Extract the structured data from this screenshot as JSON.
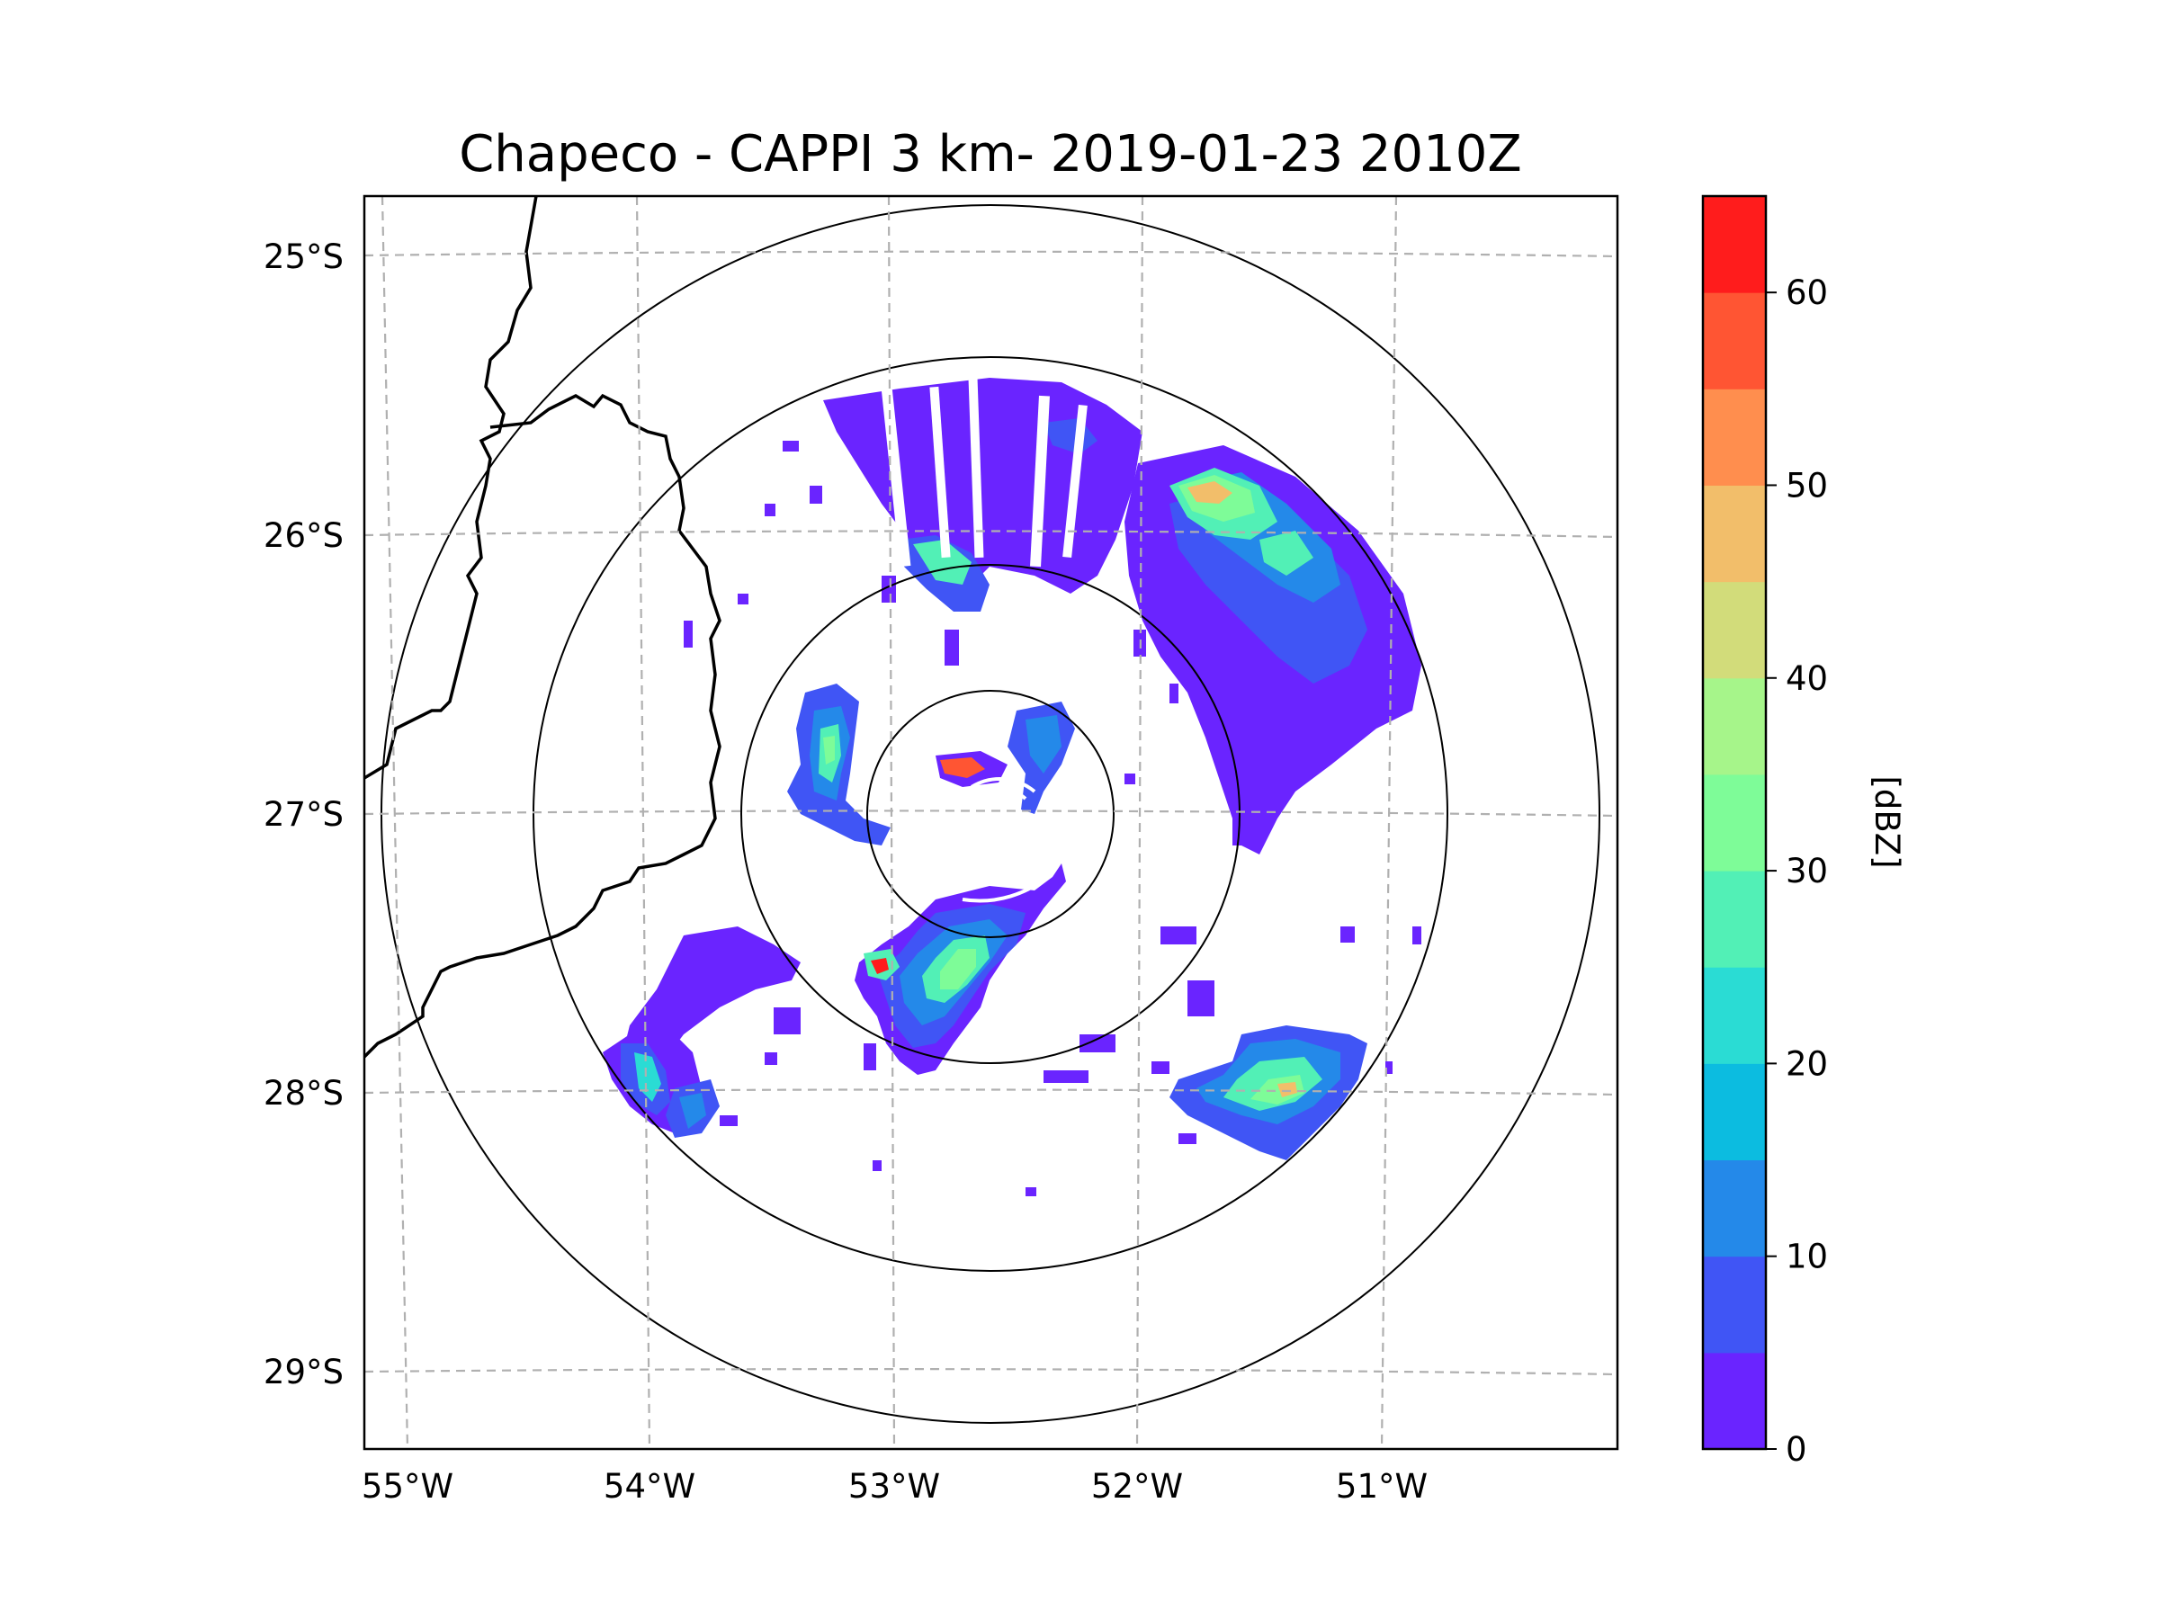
{
  "title": "Chapeco - CAPPI 3 km- 2019-01-23 2010Z",
  "map": {
    "lat_labels": [
      "25°S",
      "26°S",
      "27°S",
      "28°S",
      "29°S"
    ],
    "lon_labels": [
      "55°W",
      "54°W",
      "53°W",
      "52°W",
      "51°W"
    ],
    "lat_values": [
      -25,
      -26,
      -27,
      -28,
      -29
    ],
    "lon_values": [
      -55,
      -54,
      -53,
      -52,
      -51
    ],
    "range_rings_count": 4,
    "gridline_color": "#b0b0b0",
    "border_color": "#000000"
  },
  "colorbar": {
    "label": "[dBZ]",
    "min": 0,
    "max": 65,
    "step": 5,
    "tick_labels": [
      "0",
      "10",
      "20",
      "30",
      "40",
      "50",
      "60"
    ],
    "tick_values": [
      0,
      10,
      20,
      30,
      40,
      50,
      60
    ],
    "colors": [
      "#6a24ff",
      "#4055f5",
      "#2489e9",
      "#0cbce0",
      "#2adcd4",
      "#52f0b6",
      "#7efc98",
      "#a6f58a",
      "#d2dc7a",
      "#f2be6a",
      "#ff8e4e",
      "#ff5533",
      "#ff1c1c"
    ]
  }
}
